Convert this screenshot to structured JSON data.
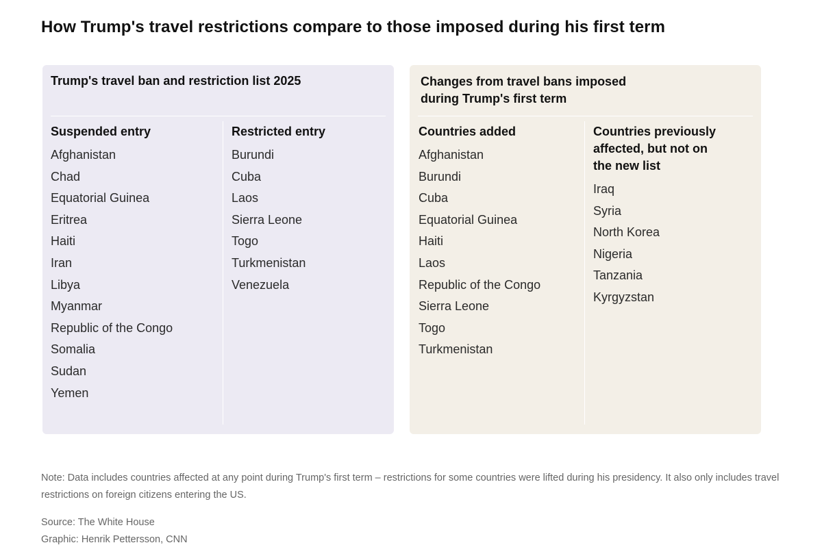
{
  "title": "How Trump's travel restrictions compare to those imposed during his first term",
  "left_panel": {
    "title": "Trump's travel ban and restriction list 2025",
    "suspended": {
      "heading": "Suspended entry",
      "items": [
        "Afghanistan",
        "Chad",
        "Equatorial Guinea",
        "Eritrea",
        "Haiti",
        "Iran",
        "Libya",
        "Myanmar",
        "Republic of the Congo",
        "Somalia",
        "Sudan",
        "Yemen"
      ]
    },
    "restricted": {
      "heading": "Restricted entry",
      "items": [
        "Burundi",
        "Cuba",
        "Laos",
        "Sierra Leone",
        "Togo",
        "Turkmenistan",
        "Venezuela"
      ]
    }
  },
  "right_panel": {
    "title_line1": "Changes from travel bans imposed",
    "title_line2": "during Trump's first term",
    "added": {
      "heading": "Countries added",
      "items": [
        "Afghanistan",
        "Burundi",
        "Cuba",
        "Equatorial Guinea",
        "Haiti",
        "Laos",
        "Republic of the Congo",
        "Sierra Leone",
        "Togo",
        "Turkmenistan"
      ]
    },
    "previous": {
      "heading_line1": "Countries previously",
      "heading_line2": "affected, but not on",
      "heading_line3": "the new list",
      "items": [
        "Iraq",
        "Syria",
        "North Korea",
        "Nigeria",
        "Tanzania",
        "Kyrgyzstan"
      ]
    }
  },
  "note": "Note: Data includes countries affected at any point during Trump's first term – restrictions for some countries were lifted during his presidency. It also only includes travel restrictions on foreign citizens entering the US.",
  "source": "Source: The White House",
  "graphic": "Graphic: Henrik Pettersson, CNN"
}
